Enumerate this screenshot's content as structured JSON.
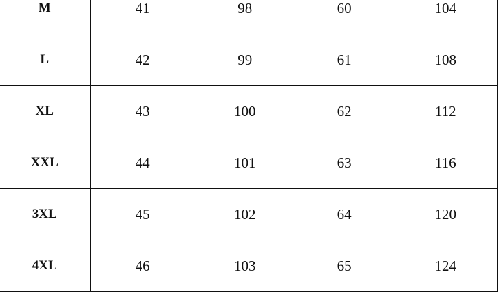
{
  "table": {
    "rows": [
      [
        "M",
        "41",
        "98",
        "60",
        "104"
      ],
      [
        "L",
        "42",
        "99",
        "61",
        "108"
      ],
      [
        "XL",
        "43",
        "100",
        "62",
        "112"
      ],
      [
        "XXL",
        "44",
        "101",
        "63",
        "116"
      ],
      [
        "3XL",
        "45",
        "102",
        "64",
        "120"
      ],
      [
        "4XL",
        "46",
        "103",
        "65",
        "124"
      ]
    ]
  }
}
